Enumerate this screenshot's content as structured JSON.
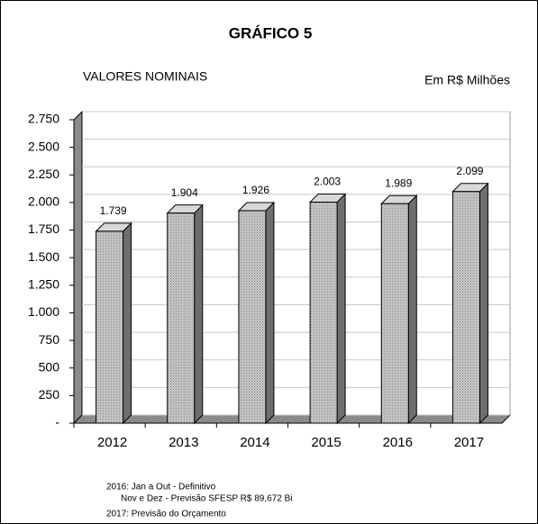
{
  "chart_data": {
    "type": "bar3d",
    "title": "GRÁFICO 5",
    "subtitle": "VALORES NOMINAIS",
    "unit_label": "Em R$ Milhões",
    "categories": [
      "2012",
      "2013",
      "2014",
      "2015",
      "2016",
      "2017"
    ],
    "values": [
      1739,
      1904,
      1926,
      2003,
      1989,
      2099
    ],
    "value_labels": [
      "1.739",
      "1.904",
      "1.926",
      "2.003",
      "1.989",
      "2.099"
    ],
    "color": "#b8b8b8",
    "ylim": [
      0,
      2750
    ],
    "yticks": [
      {
        "value": 0,
        "label": "-"
      },
      250,
      500,
      750,
      {
        "value": 1000,
        "label": "1.000"
      },
      {
        "value": 1250,
        "label": "1.250"
      },
      {
        "value": 1500,
        "label": "1.500"
      },
      {
        "value": 1750,
        "label": "1.750"
      },
      {
        "value": 2000,
        "label": "2.000"
      },
      {
        "value": 2250,
        "label": "2.250"
      },
      {
        "value": 2500,
        "label": "2.500"
      },
      {
        "value": 2750,
        "label": "2.750"
      }
    ],
    "grid": true,
    "notes": [
      "2016: Jan a Out - Definitivo",
      "Nov e Dez - Previsão SFESP R$ 89,672 Bi",
      "2017: Previsão do Orçamento"
    ]
  }
}
